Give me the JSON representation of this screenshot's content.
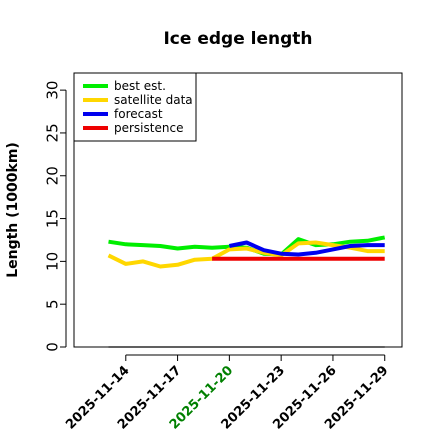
{
  "chart_data": {
    "type": "line",
    "title": "Ice edge length",
    "xlabel": "",
    "ylabel": "Length (1000km)",
    "ylim": [
      0,
      32
    ],
    "yticks": [
      0,
      5,
      10,
      15,
      20,
      25,
      30
    ],
    "xlim": [
      "2025-11-11",
      "2025-11-30"
    ],
    "xtick_labels": [
      "2025-11-14",
      "2025-11-17",
      "2025-11-20",
      "2025-11-23",
      "2025-11-26",
      "2025-11-29"
    ],
    "highlighted_tick": "2025-11-20",
    "highlight_color": "#008000",
    "grid": false,
    "legend_position": "top-left",
    "series": [
      {
        "name": "best est.",
        "color": "#00ee00",
        "x": [
          "2025-11-13",
          "2025-11-14",
          "2025-11-15",
          "2025-11-16",
          "2025-11-17",
          "2025-11-18",
          "2025-11-19",
          "2025-11-20",
          "2025-11-21",
          "2025-11-22",
          "2025-11-23",
          "2025-11-24",
          "2025-11-25",
          "2025-11-26",
          "2025-11-27",
          "2025-11-28",
          "2025-11-29"
        ],
        "y": [
          12.3,
          12.0,
          11.9,
          11.8,
          11.5,
          11.7,
          11.6,
          11.7,
          11.6,
          10.9,
          10.8,
          12.6,
          11.9,
          12.0,
          12.3,
          12.4,
          12.8
        ]
      },
      {
        "name": "satellite data",
        "color": "#ffd700",
        "x": [
          "2025-11-13",
          "2025-11-14",
          "2025-11-15",
          "2025-11-16",
          "2025-11-17",
          "2025-11-18",
          "2025-11-19",
          "2025-11-20",
          "2025-11-21",
          "2025-11-22",
          "2025-11-23",
          "2025-11-24",
          "2025-11-25",
          "2025-11-26",
          "2025-11-27",
          "2025-11-28",
          "2025-11-29"
        ],
        "y": [
          10.7,
          9.7,
          10.0,
          9.4,
          9.6,
          10.2,
          10.3,
          11.4,
          11.5,
          11.0,
          10.7,
          12.1,
          12.2,
          11.9,
          11.6,
          11.2,
          11.2
        ]
      },
      {
        "name": "forecast",
        "color": "#0000ee",
        "x": [
          "2025-11-20",
          "2025-11-21",
          "2025-11-22",
          "2025-11-23",
          "2025-11-24",
          "2025-11-25",
          "2025-11-26",
          "2025-11-27",
          "2025-11-28",
          "2025-11-29"
        ],
        "y": [
          11.8,
          12.2,
          11.3,
          10.9,
          10.8,
          11.0,
          11.4,
          11.8,
          11.9,
          11.9
        ]
      },
      {
        "name": "persistence",
        "color": "#ee0000",
        "x": [
          "2025-11-19",
          "2025-11-20",
          "2025-11-21",
          "2025-11-22",
          "2025-11-23",
          "2025-11-24",
          "2025-11-25",
          "2025-11-26",
          "2025-11-27",
          "2025-11-28",
          "2025-11-29"
        ],
        "y": [
          10.3,
          10.3,
          10.3,
          10.3,
          10.3,
          10.3,
          10.3,
          10.3,
          10.3,
          10.3,
          10.3
        ]
      }
    ],
    "reference_line": {
      "y": 0,
      "color": "#808080",
      "x": [
        "2025-11-13",
        "2025-11-29"
      ]
    }
  }
}
